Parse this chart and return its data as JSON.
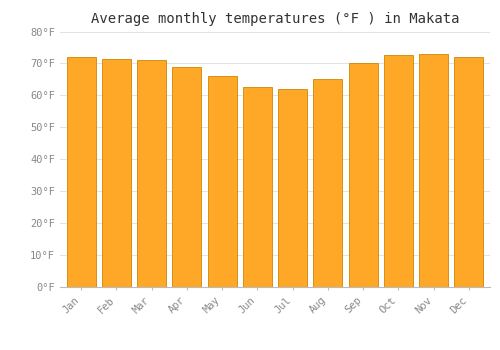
{
  "title": "Average monthly temperatures (°F ) in Makata",
  "months": [
    "Jan",
    "Feb",
    "Mar",
    "Apr",
    "May",
    "Jun",
    "Jul",
    "Aug",
    "Sep",
    "Oct",
    "Nov",
    "Dec"
  ],
  "values": [
    72,
    71.5,
    71,
    69,
    66,
    62.5,
    62,
    65,
    70,
    72.5,
    73,
    72
  ],
  "bar_color": "#FFA726",
  "bar_edge_color": "#CC8800",
  "background_color": "#FFFFFF",
  "grid_color": "#DDDDDD",
  "ylim": [
    0,
    80
  ],
  "yticks": [
    0,
    10,
    20,
    30,
    40,
    50,
    60,
    70,
    80
  ],
  "ytick_labels": [
    "0°F",
    "10°F",
    "20°F",
    "30°F",
    "40°F",
    "50°F",
    "60°F",
    "70°F",
    "80°F"
  ],
  "title_fontsize": 10,
  "tick_fontsize": 7.5,
  "tick_font_color": "#888888",
  "title_font_color": "#333333",
  "bar_width": 0.82,
  "figsize": [
    5.0,
    3.5
  ],
  "dpi": 100
}
